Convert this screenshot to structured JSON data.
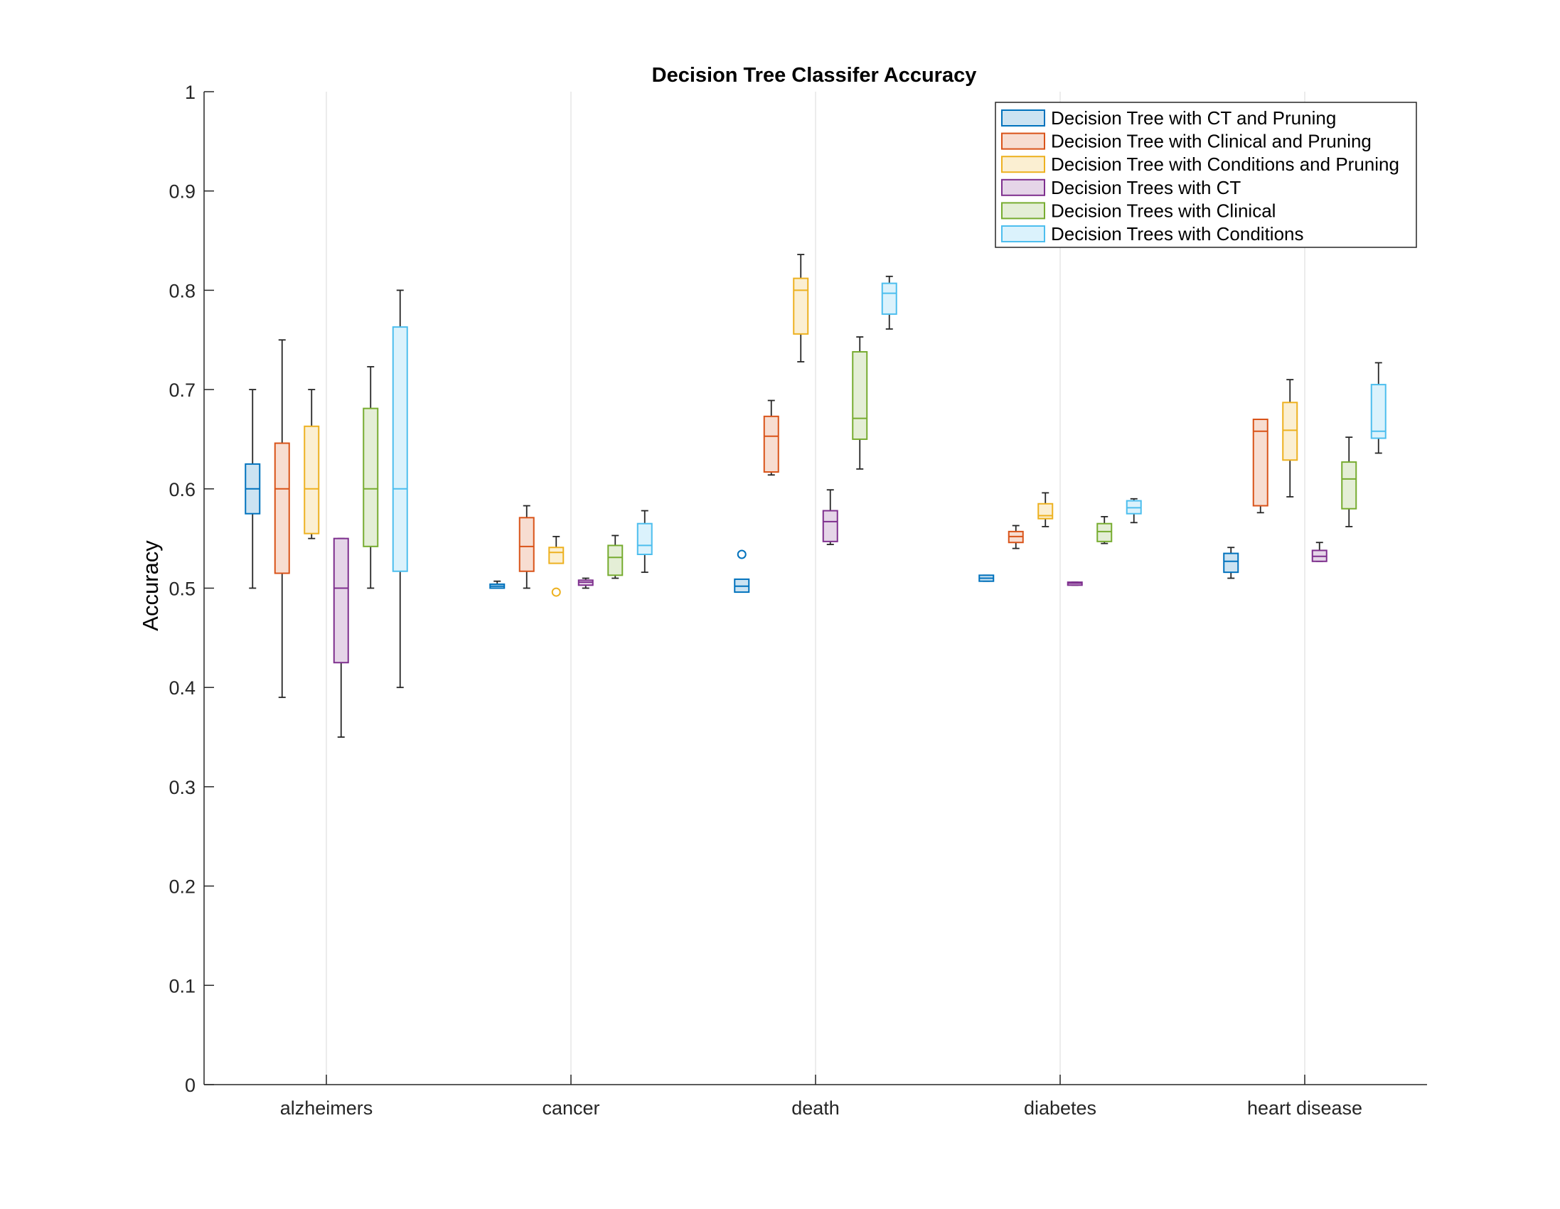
{
  "chart_data": {
    "type": "box",
    "title": "Decision Tree Classifer Accuracy",
    "xlabel": "",
    "ylabel": "Accuracy",
    "ylim": [
      0,
      1
    ],
    "yticks": [
      0,
      0.1,
      0.2,
      0.3,
      0.4,
      0.5,
      0.6,
      0.7,
      0.8,
      0.9,
      1
    ],
    "ytick_labels": [
      "0",
      "0.1",
      "0.2",
      "0.3",
      "0.4",
      "0.5",
      "0.6",
      "0.7",
      "0.8",
      "0.9",
      "1"
    ],
    "categories": [
      "alzheimers",
      "cancer",
      "death",
      "diabetes",
      "heart disease"
    ],
    "grid": "vertical lines at categories",
    "legend_position": "top-right",
    "series": [
      {
        "name": "Decision Tree with CT and Pruning",
        "color": "#0072BD",
        "fill": "#CCE3F2",
        "boxes": [
          {
            "whisker_low": 0.5,
            "q1": 0.575,
            "median": 0.6,
            "q3": 0.625,
            "whisker_high": 0.7,
            "outliers": []
          },
          {
            "whisker_low": 0.5,
            "q1": 0.5,
            "median": 0.502,
            "q3": 0.504,
            "whisker_high": 0.507,
            "outliers": []
          },
          {
            "whisker_low": 0.496,
            "q1": 0.496,
            "median": 0.502,
            "q3": 0.509,
            "whisker_high": 0.509,
            "outliers": [
              0.534
            ]
          },
          {
            "whisker_low": 0.507,
            "q1": 0.507,
            "median": 0.51,
            "q3": 0.513,
            "whisker_high": 0.513,
            "outliers": []
          },
          {
            "whisker_low": 0.51,
            "q1": 0.516,
            "median": 0.527,
            "q3": 0.535,
            "whisker_high": 0.541,
            "outliers": []
          }
        ]
      },
      {
        "name": "Decision Tree with Clinical and Pruning",
        "color": "#D95319",
        "fill": "#F7DDD1",
        "boxes": [
          {
            "whisker_low": 0.39,
            "q1": 0.515,
            "median": 0.6,
            "q3": 0.646,
            "whisker_high": 0.75,
            "outliers": []
          },
          {
            "whisker_low": 0.5,
            "q1": 0.517,
            "median": 0.542,
            "q3": 0.571,
            "whisker_high": 0.583,
            "outliers": []
          },
          {
            "whisker_low": 0.614,
            "q1": 0.617,
            "median": 0.653,
            "q3": 0.673,
            "whisker_high": 0.689,
            "outliers": []
          },
          {
            "whisker_low": 0.54,
            "q1": 0.546,
            "median": 0.552,
            "q3": 0.557,
            "whisker_high": 0.563,
            "outliers": []
          },
          {
            "whisker_low": 0.576,
            "q1": 0.583,
            "median": 0.658,
            "q3": 0.67,
            "whisker_high": 0.67,
            "outliers": []
          }
        ]
      },
      {
        "name": "Decision Tree with Conditions and Pruning",
        "color": "#EDB120",
        "fill": "#FBEFD2",
        "boxes": [
          {
            "whisker_low": 0.55,
            "q1": 0.555,
            "median": 0.6,
            "q3": 0.663,
            "whisker_high": 0.7,
            "outliers": []
          },
          {
            "whisker_low": 0.525,
            "q1": 0.525,
            "median": 0.536,
            "q3": 0.541,
            "whisker_high": 0.552,
            "outliers": [
              0.496
            ]
          },
          {
            "whisker_low": 0.728,
            "q1": 0.756,
            "median": 0.8,
            "q3": 0.812,
            "whisker_high": 0.836,
            "outliers": []
          },
          {
            "whisker_low": 0.562,
            "q1": 0.57,
            "median": 0.573,
            "q3": 0.585,
            "whisker_high": 0.596,
            "outliers": []
          },
          {
            "whisker_low": 0.592,
            "q1": 0.629,
            "median": 0.659,
            "q3": 0.687,
            "whisker_high": 0.71,
            "outliers": []
          }
        ]
      },
      {
        "name": "Decision Trees with CT",
        "color": "#7E2F8E",
        "fill": "#E5D5E8",
        "boxes": [
          {
            "whisker_low": 0.35,
            "q1": 0.425,
            "median": 0.5,
            "q3": 0.55,
            "whisker_high": 0.55,
            "outliers": []
          },
          {
            "whisker_low": 0.5,
            "q1": 0.503,
            "median": 0.506,
            "q3": 0.508,
            "whisker_high": 0.51,
            "outliers": []
          },
          {
            "whisker_low": 0.544,
            "q1": 0.547,
            "median": 0.567,
            "q3": 0.578,
            "whisker_high": 0.599,
            "outliers": []
          },
          {
            "whisker_low": 0.503,
            "q1": 0.503,
            "median": 0.505,
            "q3": 0.506,
            "whisker_high": 0.506,
            "outliers": []
          },
          {
            "whisker_low": 0.527,
            "q1": 0.527,
            "median": 0.532,
            "q3": 0.538,
            "whisker_high": 0.546,
            "outliers": []
          }
        ]
      },
      {
        "name": "Decision Trees with Clinical",
        "color": "#77AC30",
        "fill": "#E4EED6",
        "boxes": [
          {
            "whisker_low": 0.5,
            "q1": 0.542,
            "median": 0.6,
            "q3": 0.681,
            "whisker_high": 0.723,
            "outliers": []
          },
          {
            "whisker_low": 0.51,
            "q1": 0.513,
            "median": 0.531,
            "q3": 0.543,
            "whisker_high": 0.553,
            "outliers": []
          },
          {
            "whisker_low": 0.62,
            "q1": 0.65,
            "median": 0.671,
            "q3": 0.738,
            "whisker_high": 0.753,
            "outliers": []
          },
          {
            "whisker_low": 0.545,
            "q1": 0.547,
            "median": 0.557,
            "q3": 0.565,
            "whisker_high": 0.572,
            "outliers": []
          },
          {
            "whisker_low": 0.562,
            "q1": 0.58,
            "median": 0.61,
            "q3": 0.627,
            "whisker_high": 0.652,
            "outliers": []
          }
        ]
      },
      {
        "name": "Decision Trees with Conditions",
        "color": "#4DBEEE",
        "fill": "#DBF2FC",
        "boxes": [
          {
            "whisker_low": 0.4,
            "q1": 0.517,
            "median": 0.6,
            "q3": 0.763,
            "whisker_high": 0.8,
            "outliers": []
          },
          {
            "whisker_low": 0.516,
            "q1": 0.534,
            "median": 0.543,
            "q3": 0.565,
            "whisker_high": 0.578,
            "outliers": []
          },
          {
            "whisker_low": 0.761,
            "q1": 0.776,
            "median": 0.797,
            "q3": 0.807,
            "whisker_high": 0.814,
            "outliers": []
          },
          {
            "whisker_low": 0.566,
            "q1": 0.575,
            "median": 0.581,
            "q3": 0.588,
            "whisker_high": 0.59,
            "outliers": []
          },
          {
            "whisker_low": 0.636,
            "q1": 0.651,
            "median": 0.658,
            "q3": 0.705,
            "whisker_high": 0.727,
            "outliers": []
          }
        ]
      }
    ]
  }
}
